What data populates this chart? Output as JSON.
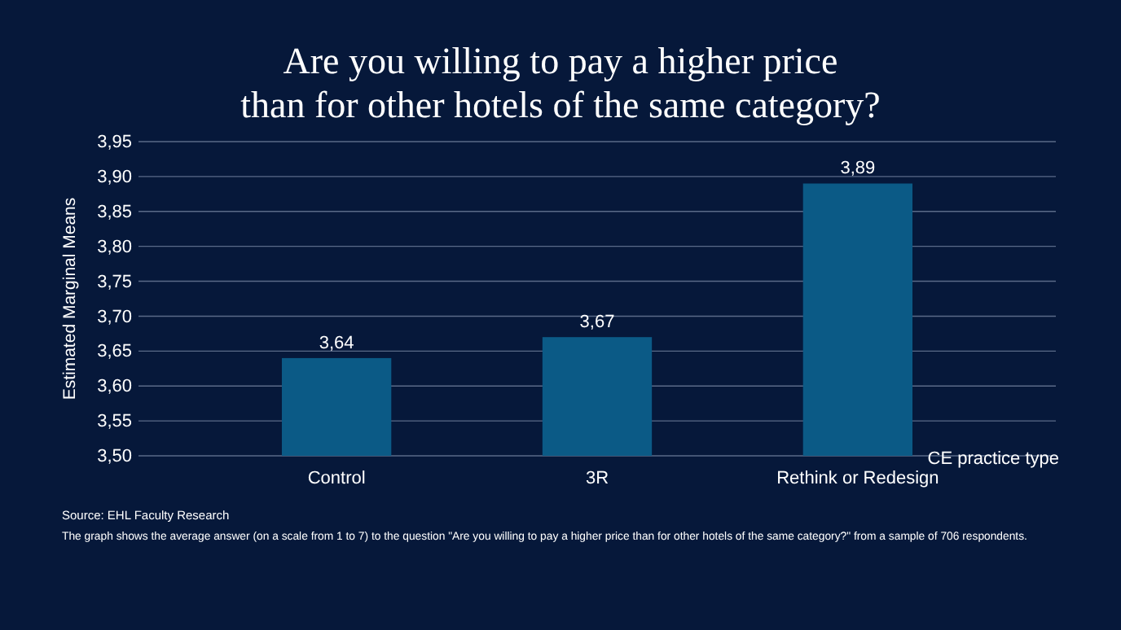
{
  "chart_data": {
    "type": "bar",
    "title": "Are you willing to pay a higher price\nthan for other hotels of the same category?",
    "xlabel": "CE practice type",
    "ylabel": "Estimated Marginal Means",
    "categories": [
      "Control",
      "3R",
      "Rethink or Redesign"
    ],
    "values": [
      3.64,
      3.67,
      3.89
    ],
    "value_labels": [
      "3,64",
      "3,67",
      "3,89"
    ],
    "color": "#0b5a86",
    "ylim": [
      3.5,
      3.95
    ],
    "yticks": [
      {
        "value": 3.5,
        "label": "3,50"
      },
      {
        "value": 3.55,
        "label": "3,55"
      },
      {
        "value": 3.6,
        "label": "3,60"
      },
      {
        "value": 3.65,
        "label": "3,65"
      },
      {
        "value": 3.7,
        "label": "3,70"
      },
      {
        "value": 3.75,
        "label": "3,75"
      },
      {
        "value": 3.8,
        "label": "3,80"
      },
      {
        "value": 3.85,
        "label": "3,85"
      },
      {
        "value": 3.9,
        "label": "3,90"
      },
      {
        "value": 3.95,
        "label": "3,95"
      }
    ],
    "grid": "y",
    "annotations": [
      "Source: EHL Faculty Research",
      "The graph shows the average answer (on a scale from 1 to 7) to the question \"Are you willing to pay a higher price than for other hotels of the same category?\" from a sample of 706 respondents."
    ]
  }
}
